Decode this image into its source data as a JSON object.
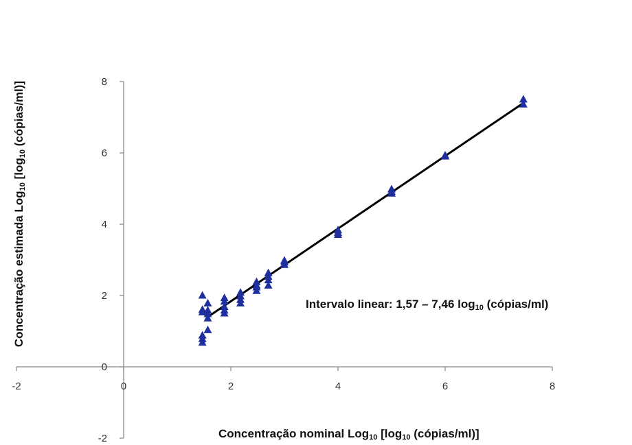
{
  "chart_data": {
    "type": "scatter",
    "xlabel": {
      "prefix": "Concentração nominal Log",
      "prefix_sub": "10",
      "middle": " [log",
      "middle_sub": "10",
      "suffix": " (cópias/ml)]"
    },
    "ylabel": {
      "prefix": "Concentração estimada Log",
      "prefix_sub": "10",
      "middle": " [log",
      "middle_sub": "10",
      "suffix": " (cópias/ml)]"
    },
    "annotation": {
      "prefix": "Intervalo linear: 1,57 – 7,46 log",
      "sub": "10",
      "suffix": " (cópias/ml)"
    },
    "xlim": [
      -2,
      8
    ],
    "ylim": [
      -2,
      8
    ],
    "x_ticks": [
      -2,
      0,
      2,
      4,
      6,
      8
    ],
    "y_ticks": [
      -2,
      0,
      2,
      4,
      6,
      8
    ],
    "x_tick_labels": [
      "-2",
      "0",
      "2",
      "4",
      "6",
      "8"
    ],
    "y_tick_labels": [
      "-2",
      "0",
      "2",
      "4",
      "6",
      "8"
    ],
    "grid": false,
    "series": [
      {
        "marker": "triangle",
        "color": "#1f2f9e",
        "points": [
          [
            1.47,
            2.02
          ],
          [
            1.47,
            1.62
          ],
          [
            1.47,
            1.55
          ],
          [
            1.47,
            0.9
          ],
          [
            1.47,
            0.8
          ],
          [
            1.47,
            0.7
          ],
          [
            1.57,
            1.8
          ],
          [
            1.57,
            1.6
          ],
          [
            1.57,
            1.5
          ],
          [
            1.57,
            1.38
          ],
          [
            1.57,
            1.05
          ],
          [
            1.88,
            1.95
          ],
          [
            1.88,
            1.85
          ],
          [
            1.88,
            1.7
          ],
          [
            1.88,
            1.6
          ],
          [
            1.88,
            1.52
          ],
          [
            2.18,
            2.1
          ],
          [
            2.18,
            2.0
          ],
          [
            2.18,
            1.9
          ],
          [
            2.18,
            1.8
          ],
          [
            2.48,
            2.4
          ],
          [
            2.48,
            2.3
          ],
          [
            2.48,
            2.25
          ],
          [
            2.48,
            2.15
          ],
          [
            2.7,
            2.65
          ],
          [
            2.7,
            2.55
          ],
          [
            2.7,
            2.45
          ],
          [
            2.7,
            2.3
          ],
          [
            3.0,
            3.0
          ],
          [
            3.0,
            2.95
          ],
          [
            3.0,
            2.88
          ],
          [
            4.0,
            3.85
          ],
          [
            4.0,
            3.78
          ],
          [
            4.0,
            3.72
          ],
          [
            5.0,
            5.0
          ],
          [
            5.0,
            4.93
          ],
          [
            5.0,
            4.88
          ],
          [
            6.0,
            5.95
          ],
          [
            6.0,
            5.92
          ],
          [
            7.46,
            7.52
          ],
          [
            7.46,
            7.38
          ]
        ]
      }
    ],
    "trendline": {
      "color": "#000000",
      "points": [
        [
          1.57,
          1.4
        ],
        [
          7.46,
          7.4
        ]
      ]
    }
  }
}
